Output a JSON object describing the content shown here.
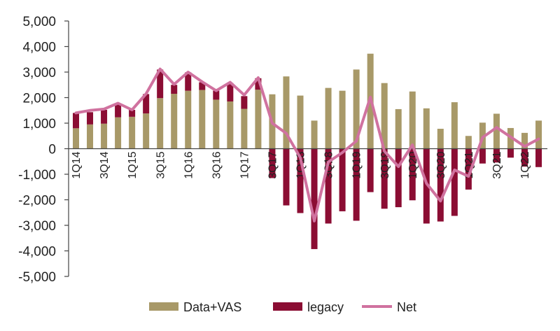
{
  "chart_data": {
    "type": "bar",
    "stacked": true,
    "ylim": [
      -5000,
      5000
    ],
    "yticks": [
      -5000,
      -4000,
      -3000,
      -2000,
      -1000,
      0,
      1000,
      2000,
      3000,
      4000,
      5000
    ],
    "ytick_labels": [
      "-5,000",
      "-4,000",
      "-3,000",
      "-2,000",
      "-1,000",
      "0",
      "1,000",
      "2,000",
      "3,000",
      "4,000",
      "5,000"
    ],
    "grid": false,
    "legend_position": "bottom",
    "categories": [
      "1Q14",
      "2Q14",
      "3Q14",
      "4Q14",
      "1Q15",
      "2Q15",
      "3Q15",
      "4Q15",
      "1Q16",
      "2Q16",
      "3Q16",
      "4Q16",
      "1Q17",
      "2Q17",
      "3Q17",
      "4Q17",
      "1Q18",
      "2Q18",
      "3Q18",
      "4Q18",
      "1Q19",
      "2Q19",
      "3Q19",
      "4Q19",
      "1Q20",
      "2Q20",
      "3Q20",
      "4Q20",
      "1Q21",
      "2Q21",
      "3Q21",
      "4Q21",
      "1Q22",
      "2Q22"
    ],
    "x_tick_labels": [
      "1Q14",
      "3Q14",
      "1Q15",
      "3Q15",
      "1Q16",
      "3Q16",
      "1Q17",
      "3Q17",
      "1Q18",
      "3Q18",
      "1Q19",
      "3Q19",
      "1Q20",
      "3Q20",
      "1Q21",
      "3Q21",
      "1Q22"
    ],
    "series": [
      {
        "name": "Data+VAS",
        "kind": "bar",
        "color": "#A89968",
        "values": [
          800,
          950,
          980,
          1230,
          1250,
          1380,
          1980,
          2150,
          2270,
          2300,
          1920,
          1850,
          1560,
          2310,
          2130,
          2830,
          2080,
          1100,
          2380,
          2270,
          3100,
          3720,
          2570,
          1550,
          2240,
          1580,
          780,
          1820,
          500,
          1020,
          1370,
          810,
          620,
          1100
        ]
      },
      {
        "name": "legacy",
        "kind": "bar",
        "color": "#8B0D33",
        "values": [
          600,
          480,
          540,
          550,
          270,
          760,
          1120,
          350,
          720,
          300,
          350,
          720,
          500,
          450,
          -1150,
          -2220,
          -2520,
          -3930,
          -2930,
          -2450,
          -2820,
          -1700,
          -2350,
          -2290,
          -2020,
          -2930,
          -2850,
          -2630,
          -1600,
          -580,
          -540,
          -350,
          -700,
          -720
        ]
      },
      {
        "name": "Net",
        "kind": "line",
        "color": "#D0729F",
        "values": [
          1400,
          1500,
          1550,
          1780,
          1520,
          2150,
          3120,
          2520,
          3000,
          2620,
          2270,
          2600,
          2100,
          2780,
          1000,
          600,
          -350,
          -2830,
          -520,
          -150,
          300,
          2020,
          -100,
          -700,
          150,
          -1360,
          -2050,
          -830,
          -1080,
          440,
          830,
          460,
          90,
          380
        ]
      }
    ]
  }
}
